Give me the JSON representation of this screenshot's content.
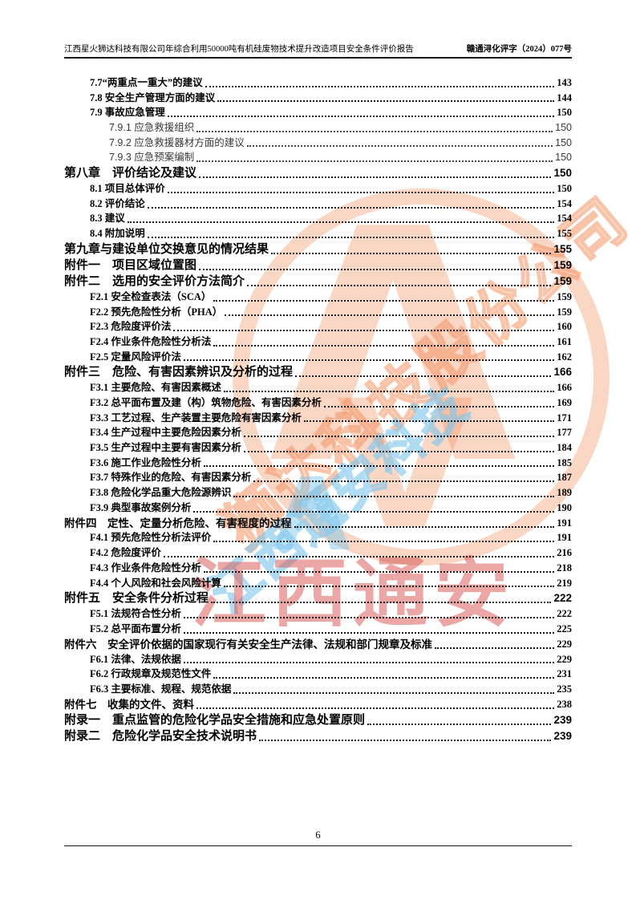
{
  "header": {
    "left": "江西星火狮达科技有限公司年综合利用50000吨有机硅废物技术提升改造项目安全条件评价报告",
    "right": "赣通浔化评字（2024）077号"
  },
  "footer": {
    "page_number": "6"
  },
  "watermark": {
    "seal_diagonal_text": "狮达科技股份公司",
    "blue_diagonal_text": "江西通安科技",
    "red_company_text": "江西通安",
    "logo_glyph_a": "Λ",
    "logo_glyph_v": "V",
    "salmon_color": "#F2996C",
    "blue_color": "#82C8EB",
    "red_color": "#D5504B"
  },
  "toc": {
    "entries": [
      {
        "style": "s",
        "text": "7.7“两重点一重大”的建议",
        "page": "143"
      },
      {
        "style": "s",
        "text": "7.8 安全生产管理方面的建议",
        "page": "144"
      },
      {
        "style": "s",
        "text": "7.9 事故应急管理",
        "page": "150"
      },
      {
        "style": "ss",
        "text": "7.9.1 应急救援组织",
        "page": "150"
      },
      {
        "style": "ss",
        "text": "7.9.2 应急救援器材方面的建议",
        "page": "150"
      },
      {
        "style": "ss",
        "text": "7.9.3 应急预案编制",
        "page": "150"
      },
      {
        "style": "h",
        "text": "第八章　评价结论及建议",
        "page": "150"
      },
      {
        "style": "s",
        "text": "8.1 项目总体评价",
        "page": "150"
      },
      {
        "style": "s",
        "text": "8.2 评价结论",
        "page": "154"
      },
      {
        "style": "s",
        "text": "8.3 建议",
        "page": "154"
      },
      {
        "style": "s",
        "text": "8.4 附加说明",
        "page": "155"
      },
      {
        "style": "h",
        "text": "第九章与建设单位交换意见的情况结果",
        "page": "155"
      },
      {
        "style": "h",
        "text": "附件一　项目区域位置图",
        "page": "159"
      },
      {
        "style": "h",
        "text": "附件二　选用的安全评价方法简介",
        "page": "159"
      },
      {
        "style": "s",
        "text": "F2.1 安全检查表法（SCA）",
        "page": "159"
      },
      {
        "style": "s",
        "text": "F2.2 预先危险性分析（PHA）",
        "page": "159"
      },
      {
        "style": "s",
        "text": "F2.3 危险度评价法",
        "page": "160"
      },
      {
        "style": "s",
        "text": "F2.4 作业条件危险性分析法",
        "page": "161"
      },
      {
        "style": "s",
        "text": "F2.5 定量风险评价法",
        "page": "162"
      },
      {
        "style": "h",
        "text": "附件三　危险、有害因素辨识及分析的过程",
        "page": "166"
      },
      {
        "style": "s",
        "text": "F3.1 主要危险、有害因素概述",
        "page": "166"
      },
      {
        "style": "s",
        "text": "F3.2 总平面布置及建（构）筑物危险、有害因素分析",
        "page": "169"
      },
      {
        "style": "s",
        "text": "F3.3 工艺过程、生产装置主要危险有害因素分析",
        "page": "171"
      },
      {
        "style": "s",
        "text": "F3.4 生产过程中主要危险因素分析",
        "page": "177"
      },
      {
        "style": "s",
        "text": "F3.5 生产过程中主要有害因素分析",
        "page": "184"
      },
      {
        "style": "s",
        "text": "F3.6 施工作业危险性分析",
        "page": "185"
      },
      {
        "style": "s",
        "text": "F3.7 特殊作业的危险、有害因素分析",
        "page": "187"
      },
      {
        "style": "s",
        "text": "F3.8 危险化学品重大危险源辨识",
        "page": "189"
      },
      {
        "style": "s",
        "text": "F3.9 典型事故案例分析",
        "page": "190"
      },
      {
        "style": "k",
        "text": "附件四　定性、定量分析危险、有害程度的过程",
        "page": "191"
      },
      {
        "style": "s",
        "text": "F4.1 预先危险性分析法评价",
        "page": "191"
      },
      {
        "style": "s",
        "text": "F4.2 危险度评价",
        "page": "216"
      },
      {
        "style": "s",
        "text": "F4.3 作业条件危险性分析",
        "page": "218"
      },
      {
        "style": "s",
        "text": "F4.4 个人风险和社会风险计算",
        "page": "219"
      },
      {
        "style": "h",
        "text": "附件五　安全条件分析过程",
        "page": "222"
      },
      {
        "style": "s",
        "text": "F5.1 法规符合性分析",
        "page": "222"
      },
      {
        "style": "s",
        "text": "F5.2 总平面布置分析",
        "page": "225"
      },
      {
        "style": "k",
        "text": "附件六　安全评价依据的国家现行有关安全生产法律、法规和部门规章及标准",
        "page": "229"
      },
      {
        "style": "s",
        "text": "F6.1 法律、法规依据",
        "page": "229"
      },
      {
        "style": "s",
        "text": "F6.2 行政规章及规范性文件",
        "page": "231"
      },
      {
        "style": "s",
        "text": "F6.3 主要标准、规程、规范依据",
        "page": "235"
      },
      {
        "style": "k",
        "text": "附件七　收集的文件、资料",
        "page": "238"
      },
      {
        "style": "h",
        "text": "附录一　重点监管的危险化学品安全措施和应急处置原则",
        "page": "239"
      },
      {
        "style": "h",
        "text": "附录二　危险化学品安全技术说明书",
        "page": "239"
      }
    ]
  }
}
